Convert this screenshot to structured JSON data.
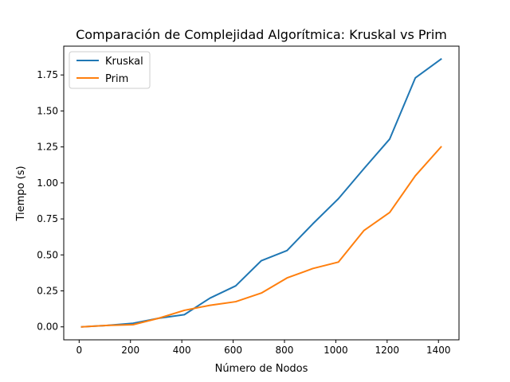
{
  "chart_data": {
    "type": "line",
    "title": "Comparación de Complejidad Algorítmica: Kruskal vs Prim",
    "xlabel": "Número de Nodos",
    "ylabel": "Tiempo (s)",
    "xlim": [
      -60,
      1480
    ],
    "ylim": [
      -0.09,
      1.95
    ],
    "xticks": [
      0,
      200,
      400,
      600,
      800,
      1000,
      1200,
      1400
    ],
    "xtick_labels": [
      "0",
      "200",
      "400",
      "600",
      "800",
      "1000",
      "1200",
      "1400"
    ],
    "yticks": [
      0.0,
      0.25,
      0.5,
      0.75,
      1.0,
      1.25,
      1.5,
      1.75
    ],
    "ytick_labels": [
      "0.00",
      "0.25",
      "0.50",
      "0.75",
      "1.00",
      "1.25",
      "1.50",
      "1.75"
    ],
    "grid": false,
    "legend_position": "upper-left",
    "x": [
      10,
      110,
      210,
      310,
      410,
      510,
      610,
      710,
      810,
      910,
      1010,
      1110,
      1210,
      1310,
      1410
    ],
    "series": [
      {
        "name": "Kruskal",
        "color": "#1f77b4",
        "values": [
          0.0,
          0.01,
          0.025,
          0.06,
          0.085,
          0.2,
          0.285,
          0.46,
          0.53,
          0.715,
          0.89,
          1.1,
          1.305,
          1.73,
          1.86
        ]
      },
      {
        "name": "Prim",
        "color": "#ff7f0e",
        "values": [
          0.0,
          0.01,
          0.015,
          0.06,
          0.115,
          0.15,
          0.175,
          0.235,
          0.34,
          0.405,
          0.45,
          0.67,
          0.795,
          1.05,
          1.25
        ]
      }
    ]
  }
}
